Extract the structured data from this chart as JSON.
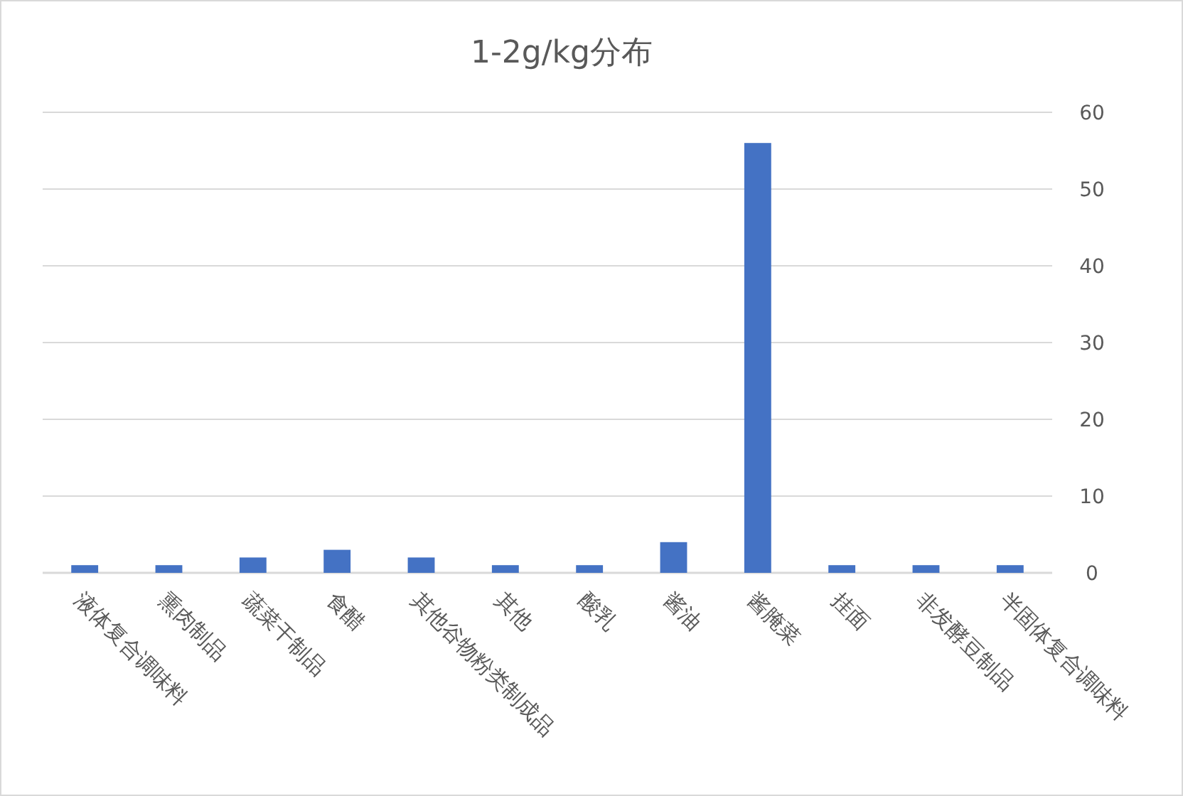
{
  "chart_data": {
    "type": "bar",
    "title": "1-2g/kg分布",
    "categories": [
      "液体复合调味料",
      "熏肉制品",
      "蔬菜干制品",
      "食醋",
      "其他谷物粉类制成品",
      "其他",
      "酸乳",
      "酱油",
      "酱腌菜",
      "挂面",
      "非发酵豆制品",
      "半固体复合调味料"
    ],
    "values": [
      1,
      1,
      2,
      3,
      2,
      1,
      1,
      4,
      56,
      1,
      1,
      1
    ],
    "color": "#4472c4",
    "ylim": [
      0,
      60
    ],
    "yticks": [
      0,
      10,
      20,
      30,
      40,
      50,
      60
    ],
    "grid": "y"
  }
}
